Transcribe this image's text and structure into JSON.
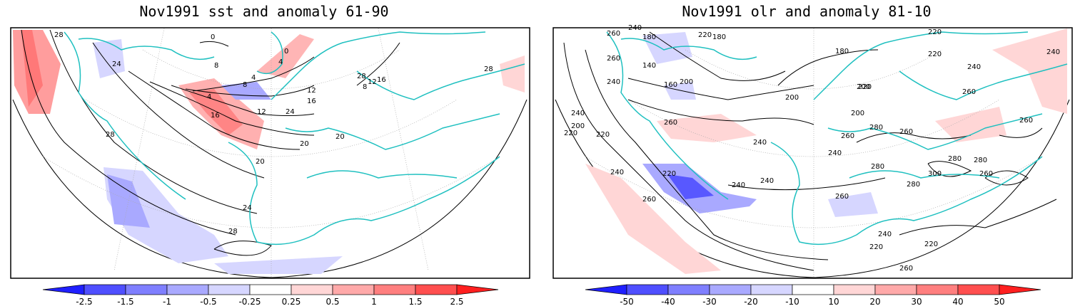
{
  "panels": [
    {
      "title": "Nov1991 sst and anomaly 61-90",
      "colorbar": {
        "ticks": [
          "-2.5",
          "-1.5",
          "-1",
          "-0.5",
          "-0.25",
          "0.25",
          "0.5",
          "1",
          "1.5",
          "2.5"
        ],
        "colors": [
          "#1f1fff",
          "#4f4fff",
          "#7f7fff",
          "#a9a9ff",
          "#d6d6ff",
          "#ffffff",
          "#ffd6d6",
          "#ffa9a9",
          "#ff7f7f",
          "#ff4f4f",
          "#ff1f1f"
        ]
      },
      "contour_labels": [
        "28",
        "24",
        "28",
        "20",
        "16",
        "12",
        "8",
        "4",
        "0",
        "4",
        "8",
        "4",
        "0",
        "12",
        "16",
        "20",
        "24",
        "28",
        "20",
        "24",
        "28",
        "28",
        "12",
        "16",
        "8"
      ]
    },
    {
      "title": "Nov1991 olr and anomaly 81-10",
      "colorbar": {
        "ticks": [
          "-50",
          "-40",
          "-30",
          "-20",
          "-10",
          "10",
          "20",
          "30",
          "40",
          "50"
        ],
        "colors": [
          "#1f1fff",
          "#4f4fff",
          "#7f7fff",
          "#a9a9ff",
          "#d6d6ff",
          "#ffffff",
          "#ffd6d6",
          "#ffa9a9",
          "#ff7f7f",
          "#ff4f4f",
          "#ff1f1f"
        ]
      },
      "contour_labels": [
        "260",
        "240",
        "260",
        "240",
        "180",
        "140",
        "160",
        "200",
        "220",
        "180",
        "180",
        "200",
        "200",
        "240",
        "220",
        "200",
        "220",
        "240",
        "260",
        "240",
        "220",
        "260",
        "240",
        "240",
        "200",
        "220",
        "280",
        "260",
        "260",
        "240",
        "280",
        "280",
        "280",
        "260",
        "300",
        "280",
        "260",
        "240",
        "220",
        "220",
        "260",
        "260",
        "240",
        "240",
        "220",
        "220",
        "260"
      ]
    }
  ]
}
